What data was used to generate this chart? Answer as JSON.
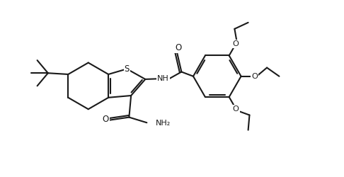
{
  "background_color": "#ffffff",
  "line_color": "#1a1a1a",
  "line_width": 1.5,
  "figsize": [
    4.86,
    2.5
  ],
  "dpi": 100,
  "xlim": [
    0,
    10
  ],
  "ylim": [
    0,
    5.15
  ]
}
